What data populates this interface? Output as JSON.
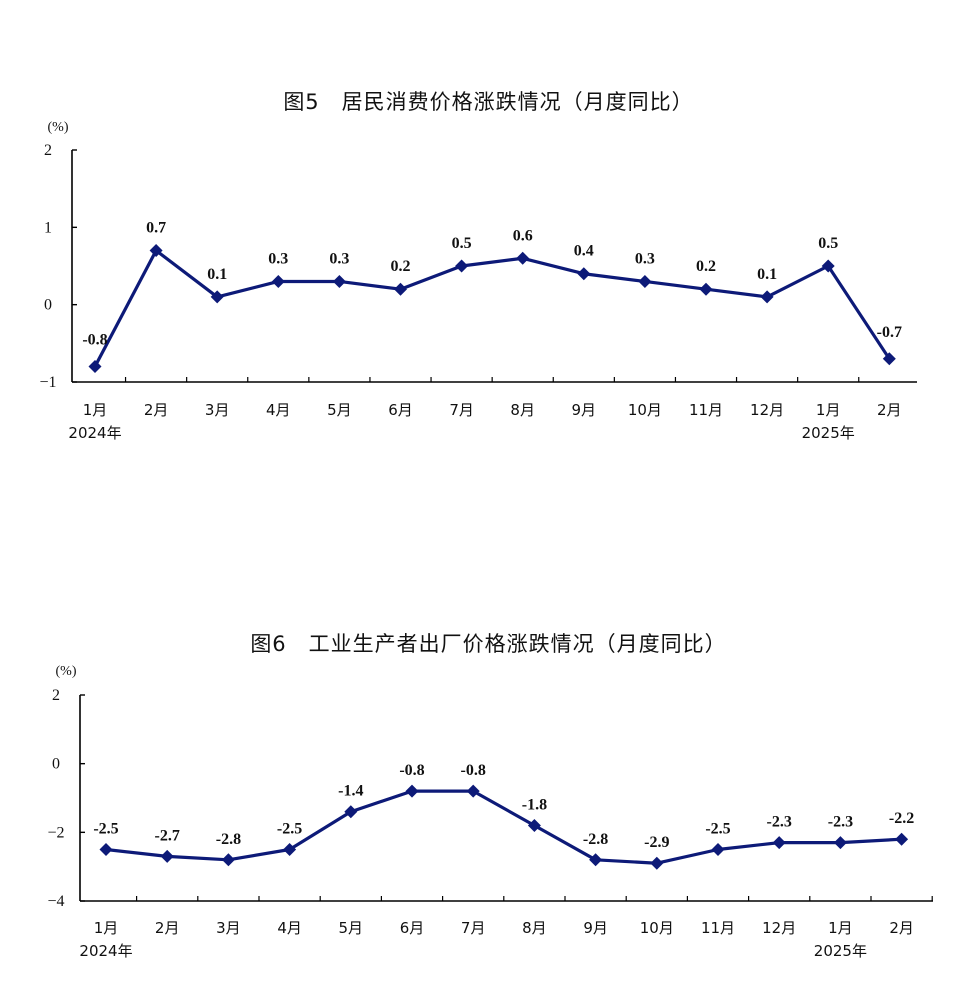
{
  "chart_data": [
    {
      "type": "line",
      "title": "图5　居民消费价格涨跌情况（月度同比）",
      "unit": "(%)",
      "categories": [
        "1月",
        "2月",
        "3月",
        "4月",
        "5月",
        "6月",
        "7月",
        "8月",
        "9月",
        "10月",
        "11月",
        "12月",
        "1月",
        "2月"
      ],
      "year_labels": [
        "2024年",
        "2025年"
      ],
      "values": [
        -0.8,
        0.7,
        0.1,
        0.3,
        0.3,
        0.2,
        0.5,
        0.6,
        0.4,
        0.3,
        0.2,
        0.1,
        0.5,
        -0.7
      ],
      "value_labels": [
        "-0.8",
        "0.7",
        "0.1",
        "0.3",
        "0.3",
        "0.2",
        "0.5",
        "0.6",
        "0.4",
        "0.3",
        "0.2",
        "0.1",
        "0.5",
        "-0.7"
      ],
      "yticks": [
        2,
        1,
        0,
        -1
      ],
      "ytick_labels": [
        "2",
        "1",
        "0",
        "−1"
      ],
      "ylim": [
        -1,
        2
      ],
      "grid": false,
      "color": "#0d1a78"
    },
    {
      "type": "line",
      "title": "图6　工业生产者出厂价格涨跌情况（月度同比）",
      "unit": "(%)",
      "categories": [
        "1月",
        "2月",
        "3月",
        "4月",
        "5月",
        "6月",
        "7月",
        "8月",
        "9月",
        "10月",
        "11月",
        "12月",
        "1月",
        "2月"
      ],
      "year_labels": [
        "2024年",
        "2025年"
      ],
      "values": [
        -2.5,
        -2.7,
        -2.8,
        -2.5,
        -1.4,
        -0.8,
        -0.8,
        -1.8,
        -2.8,
        -2.9,
        -2.5,
        -2.3,
        -2.3,
        -2.2
      ],
      "value_labels": [
        "-2.5",
        "-2.7",
        "-2.8",
        "-2.5",
        "-1.4",
        "-0.8",
        "-0.8",
        "-1.8",
        "-2.8",
        "-2.9",
        "-2.5",
        "-2.3",
        "-2.3",
        "-2.2"
      ],
      "yticks": [
        2,
        0,
        -2,
        -4
      ],
      "ytick_labels": [
        "2",
        "0",
        "−2",
        "−4"
      ],
      "ylim": [
        -4,
        2
      ],
      "grid": false,
      "color": "#0d1a78"
    }
  ]
}
